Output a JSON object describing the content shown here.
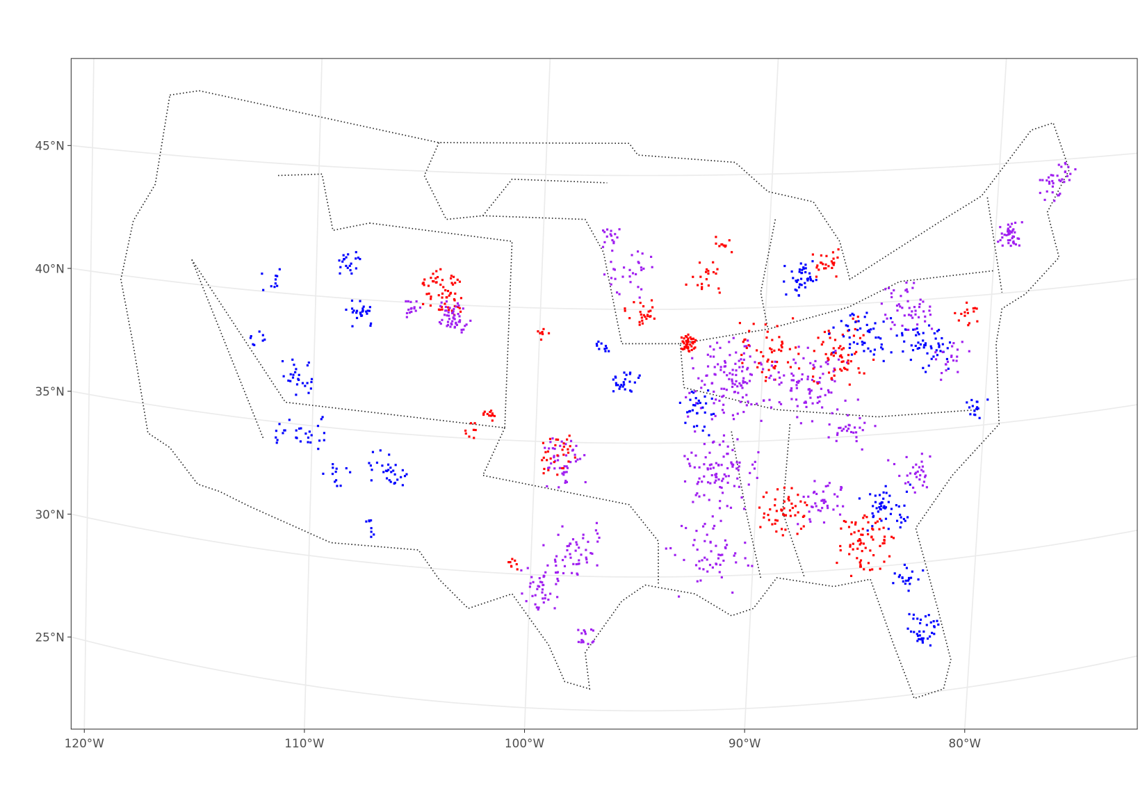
{
  "map": {
    "lat_ticks": [
      {
        "value": 45,
        "label": "45°N"
      },
      {
        "value": 40,
        "label": "40°N"
      },
      {
        "value": 35,
        "label": "35°N"
      },
      {
        "value": 30,
        "label": "30°N"
      },
      {
        "value": 25,
        "label": "25°N"
      }
    ],
    "lon_ticks": [
      {
        "value": -120,
        "label": "120°W"
      },
      {
        "value": -110,
        "label": "110°W"
      },
      {
        "value": -100,
        "label": "100°W"
      },
      {
        "value": -90,
        "label": "90°W"
      },
      {
        "value": -80,
        "label": "80°W"
      }
    ]
  }
}
